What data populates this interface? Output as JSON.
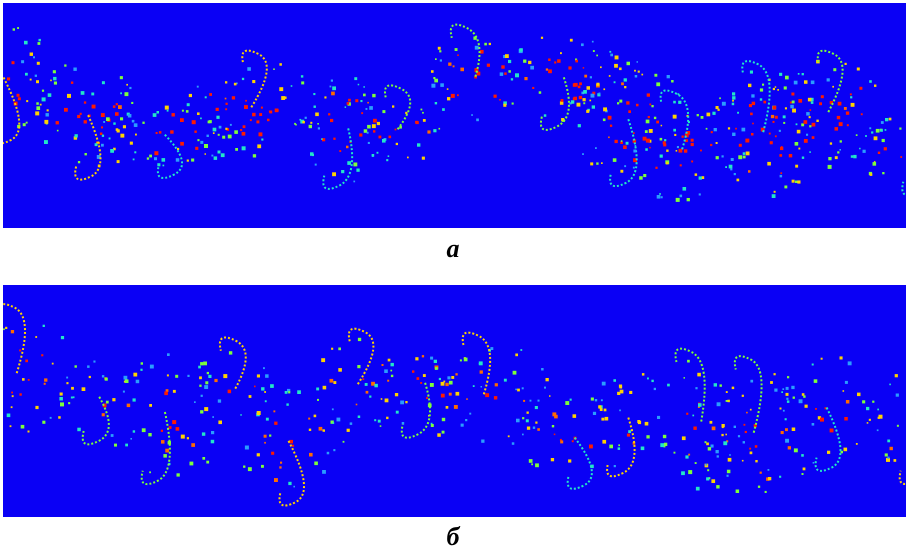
{
  "figure": {
    "panels": [
      {
        "caption": "а"
      },
      {
        "caption": "б"
      }
    ],
    "colors": {
      "background": "#0a00f5",
      "palette": [
        "#ff1a00",
        "#ff6a00",
        "#ffd200",
        "#7dff3a",
        "#22e6c8",
        "#2a9dff"
      ]
    }
  }
}
